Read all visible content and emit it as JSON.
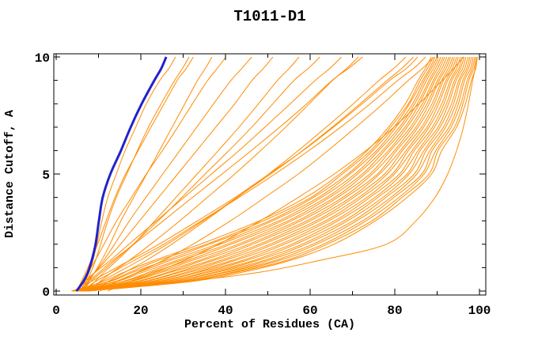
{
  "chart_data": {
    "type": "line",
    "title": "T1011-D1",
    "xlabel": "Percent of Residues (CA)",
    "ylabel": "Distance Cutoff, A",
    "xlim": [
      0,
      100
    ],
    "ylim": [
      0,
      10
    ],
    "x_major_ticks": [
      0,
      20,
      40,
      60,
      80,
      100
    ],
    "x_minor_ticks": [
      10,
      30,
      50,
      70,
      90
    ],
    "y_major_ticks": [
      0,
      5,
      10
    ],
    "y_minor_ticks": [
      1,
      2,
      3,
      4,
      6,
      7,
      8,
      9
    ],
    "grid": false,
    "legend_position": "none",
    "colors": {
      "model_curves": "#FF8C00",
      "highlight_curve": "#2222CC",
      "axes": "#000000",
      "background": "#FFFFFF"
    },
    "y_levels": [
      0,
      0.4,
      0.8,
      1.3,
      2,
      3,
      4,
      5,
      6,
      7,
      8,
      9,
      9.5,
      10
    ],
    "highlight_series": {
      "name": "highlighted-model",
      "x": [
        4.8,
        6.4,
        7.5,
        8.4,
        9.3,
        10.1,
        11.0,
        12.8,
        15.3,
        17.6,
        20.2,
        23.2,
        24.8,
        26.0
      ]
    },
    "series": [
      {
        "x": [
          5.8,
          6.8,
          7.8,
          8.7,
          9.6,
          10.8,
          12.2,
          14.2,
          16.3,
          18.8,
          21.3,
          24.5,
          26.6,
          28.2
        ]
      },
      {
        "x": [
          6.2,
          7.2,
          8.2,
          9.3,
          10.5,
          12.2,
          14.2,
          16.7,
          19.2,
          21.8,
          24.8,
          28.0,
          29.8,
          31.4
        ]
      },
      {
        "x": [
          4.9,
          5.9,
          7.0,
          8.2,
          9.8,
          11.8,
          13.9,
          16.4,
          19.4,
          22.4,
          25.5,
          28.6,
          30.7,
          32.4
        ]
      },
      {
        "x": [
          6.6,
          7.7,
          9.1,
          10.7,
          12.7,
          15.3,
          18.3,
          21.4,
          24.4,
          27.4,
          30.4,
          33.4,
          35.2,
          36.8
        ]
      },
      {
        "x": [
          5.1,
          6.2,
          7.6,
          9.2,
          11.3,
          14.3,
          17.8,
          21.3,
          25.1,
          28.7,
          32.2,
          35.8,
          38.0,
          40.1
        ]
      },
      {
        "x": [
          6.0,
          7.5,
          9.1,
          11.2,
          13.8,
          17.3,
          21.2,
          25.2,
          29.2,
          33.2,
          37.2,
          41.3,
          43.8,
          46.2
        ]
      },
      {
        "x": [
          5.5,
          7.1,
          9.2,
          11.7,
          15.2,
          19.7,
          24.2,
          28.7,
          33.2,
          37.7,
          42.2,
          46.3,
          48.9,
          51.2
        ]
      },
      {
        "x": [
          7.1,
          9.1,
          11.3,
          14.3,
          18.3,
          23.3,
          28.3,
          33.3,
          38.3,
          43.2,
          47.8,
          52.3,
          55.0,
          57.4
        ]
      },
      {
        "x": [
          6.1,
          8.1,
          10.7,
          13.8,
          18.2,
          24.1,
          29.7,
          35.2,
          40.8,
          46.2,
          51.2,
          56.2,
          59.5,
          62.3
        ]
      },
      {
        "x": [
          8.2,
          10.3,
          13.2,
          17.2,
          22.3,
          29.2,
          35.7,
          42.2,
          48.3,
          54.2,
          59.8,
          65.3,
          68.6,
          71.4
        ]
      },
      {
        "x": [
          5.6,
          7.6,
          10.2,
          13.3,
          18.4,
          25.3,
          32.2,
          39.2,
          46.1,
          52.8,
          59.2,
          65.2,
          69.0,
          72.4
        ]
      },
      {
        "x": [
          9.2,
          12.2,
          16.2,
          21.2,
          27.3,
          35.2,
          42.8,
          50.2,
          57.2,
          63.8,
          70.2,
          76.3,
          79.7,
          82.6
        ]
      },
      {
        "x": [
          10.3,
          14.2,
          19.2,
          25.2,
          32.3,
          41.2,
          49.3,
          57.2,
          64.2,
          70.8,
          77.2,
          83.2,
          86.5,
          89.2
        ]
      },
      {
        "x": [
          6.3,
          9.2,
          13.3,
          18.3,
          25.4,
          34.3,
          43.2,
          51.7,
          59.7,
          67.2,
          74.2,
          80.7,
          84.4,
          87.3
        ]
      },
      {
        "x": [
          12.2,
          17.2,
          23.3,
          30.2,
          38.4,
          48.2,
          57.2,
          65.7,
          73.2,
          79.8,
          85.7,
          91.2,
          93.9,
          96.2
        ]
      },
      {
        "x": [
          4.6,
          6.6,
          9.2,
          12.7,
          17.2,
          23.7,
          30.2,
          36.7,
          43.2,
          49.3,
          55.3,
          61.2,
          64.6,
          67.4
        ]
      },
      {
        "x": [
          7.6,
          10.6,
          14.6,
          19.6,
          26.2,
          34.7,
          42.7,
          50.7,
          58.2,
          65.2,
          71.8,
          78.2,
          81.6,
          84.4
        ]
      },
      {
        "x": [
          5.2,
          8.2,
          12.2,
          17.3,
          24.3,
          33.4,
          42.3,
          50.3,
          58.3,
          65.5,
          72.3,
          78.8,
          82.7,
          85.4
        ]
      },
      {
        "x": [
          5.0,
          30.0,
          48.0,
          62.0,
          78.0,
          85.0,
          89.5,
          92.5,
          94.6,
          96.2,
          97.4,
          98.4,
          99.0,
          99.5
        ]
      },
      {
        "x": [
          3.6,
          11.0,
          16.0,
          23.0,
          34.0,
          48.0,
          59.0,
          67.0,
          73.5,
          78.5,
          82.5,
          85.5,
          87.2,
          88.6
        ]
      },
      {
        "x": [
          3.8,
          12.2,
          17.4,
          24.0,
          35.5,
          49.0,
          60.2,
          67.6,
          74.3,
          79.0,
          83.2,
          86.0,
          87.7,
          89.1
        ]
      },
      {
        "x": [
          3.9,
          12.6,
          18.1,
          25.8,
          36.2,
          50.4,
          60.8,
          68.9,
          74.8,
          79.8,
          83.5,
          86.6,
          88.2,
          89.5
        ]
      },
      {
        "x": [
          4.1,
          13.8,
          19.5,
          26.8,
          37.9,
          51.1,
          62.0,
          69.4,
          75.7,
          80.3,
          84.2,
          87.0,
          88.6,
          90.0
        ]
      },
      {
        "x": [
          4.2,
          14.2,
          20.4,
          28.4,
          38.8,
          52.6,
          62.7,
          70.6,
          76.2,
          81.1,
          84.7,
          87.5,
          89.1,
          90.4
        ]
      },
      {
        "x": [
          4.4,
          15.5,
          21.8,
          29.3,
          40.4,
          53.4,
          63.9,
          71.2,
          77.1,
          81.6,
          85.3,
          88.1,
          89.6,
          90.9
        ]
      },
      {
        "x": [
          4.6,
          15.9,
          22.6,
          31.0,
          41.3,
          54.8,
          64.6,
          72.3,
          77.6,
          82.4,
          85.8,
          88.5,
          90.1,
          91.4
        ]
      },
      {
        "x": [
          4.7,
          17.1,
          24.0,
          32.0,
          43.0,
          55.6,
          65.8,
          72.9,
          78.5,
          82.9,
          86.5,
          89.1,
          90.6,
          91.8
        ]
      },
      {
        "x": [
          4.9,
          17.5,
          24.9,
          33.6,
          43.9,
          57.0,
          66.5,
          74.1,
          79.0,
          83.7,
          87.0,
          89.5,
          91.1,
          92.3
        ]
      },
      {
        "x": [
          5.0,
          18.7,
          26.3,
          34.5,
          45.5,
          57.8,
          67.7,
          74.7,
          79.9,
          84.2,
          87.6,
          90.1,
          91.6,
          92.8
        ]
      },
      {
        "x": [
          5.2,
          19.1,
          27.0,
          36.2,
          46.4,
          59.2,
          68.4,
          75.9,
          80.4,
          85.0,
          88.1,
          90.5,
          92.1,
          93.2
        ]
      },
      {
        "x": [
          5.4,
          20.3,
          28.5,
          37.1,
          48.0,
          60.0,
          69.6,
          76.4,
          81.3,
          85.5,
          88.8,
          91.1,
          92.6,
          93.7
        ]
      },
      {
        "x": [
          5.5,
          20.7,
          29.2,
          38.7,
          48.9,
          61.4,
          70.3,
          77.6,
          81.8,
          86.3,
          89.3,
          91.5,
          93.1,
          94.1
        ]
      },
      {
        "x": [
          5.7,
          21.9,
          30.6,
          39.7,
          50.5,
          62.2,
          71.5,
          78.2,
          82.7,
          86.8,
          89.9,
          92.1,
          93.6,
          94.6
        ]
      },
      {
        "x": [
          5.8,
          22.3,
          31.5,
          41.3,
          51.4,
          63.6,
          72.2,
          79.4,
          83.2,
          87.6,
          90.4,
          92.5,
          94.1,
          95.0
        ]
      },
      {
        "x": [
          6.0,
          23.5,
          32.9,
          42.2,
          53.0,
          64.4,
          73.4,
          79.9,
          84.1,
          88.1,
          91.1,
          93.1,
          94.6,
          95.5
        ]
      },
      {
        "x": [
          6.2,
          23.9,
          33.6,
          43.9,
          53.9,
          65.8,
          74.1,
          81.1,
          84.6,
          88.9,
          91.6,
          93.5,
          95.1,
          95.9
        ]
      },
      {
        "x": [
          6.3,
          25.1,
          35.0,
          44.8,
          55.6,
          66.6,
          75.3,
          81.7,
          85.5,
          89.4,
          92.2,
          94.1,
          95.5,
          96.4
        ]
      },
      {
        "x": [
          6.5,
          25.5,
          35.9,
          46.5,
          56.5,
          68.0,
          76.0,
          82.9,
          86.0,
          90.2,
          92.7,
          94.5,
          96.0,
          96.8
        ]
      },
      {
        "x": [
          6.6,
          26.7,
          37.3,
          47.4,
          58.1,
          68.8,
          77.2,
          83.4,
          86.9,
          90.7,
          93.4,
          95.1,
          96.5,
          97.3
        ]
      },
      {
        "x": [
          6.8,
          27.1,
          38.0,
          49.0,
          59.0,
          70.2,
          77.9,
          84.6,
          87.4,
          91.5,
          93.9,
          95.5,
          97.0,
          97.7
        ]
      },
      {
        "x": [
          7.0,
          28.3,
          39.5,
          50.0,
          60.6,
          71.0,
          79.1,
          85.2,
          88.3,
          92.0,
          94.5,
          96.1,
          97.4,
          98.1
        ]
      },
      {
        "x": [
          7.1,
          28.7,
          40.2,
          51.6,
          61.5,
          72.4,
          79.8,
          86.4,
          88.8,
          92.8,
          95.0,
          96.5,
          97.9,
          98.5
        ]
      },
      {
        "x": [
          7.3,
          29.9,
          41.6,
          52.6,
          63.1,
          73.2,
          81.0,
          86.9,
          89.7,
          93.3,
          95.6,
          97.1,
          98.3,
          98.9
        ]
      },
      {
        "x": [
          7.4,
          30.3,
          42.5,
          54.2,
          64.0,
          74.6,
          81.7,
          88.1,
          90.2,
          94.1,
          96.1,
          97.5,
          98.7,
          99.2
        ]
      },
      {
        "x": [
          7.6,
          31.5,
          43.9,
          55.1,
          65.6,
          75.4,
          82.9,
          88.7,
          91.1,
          94.6,
          96.7,
          98.1,
          99.1,
          99.5
        ]
      }
    ]
  }
}
